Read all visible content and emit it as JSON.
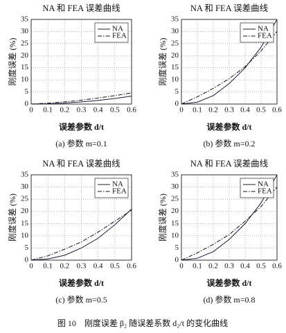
{
  "chart_data": [
    {
      "type": "line",
      "title": "NA 和 FEA 误差曲线",
      "xlabel": "误差参数 d/t",
      "ylabel": "刚度误差 (%)",
      "caption": "(a) 参数 m=0.1",
      "x": [
        0,
        0.1,
        0.2,
        0.3,
        0.4,
        0.5,
        0.6
      ],
      "series": [
        {
          "name": "NA",
          "color": "#1a1a3a",
          "dash": "none",
          "values": [
            0,
            0.1,
            0.4,
            0.9,
            1.5,
            2.3,
            3.3
          ]
        },
        {
          "name": "FEA",
          "color": "#111111",
          "dash": "6 2 1.5 2",
          "values": [
            0,
            0.4,
            0.9,
            1.6,
            2.5,
            3.5,
            4.6
          ]
        }
      ],
      "xlim": [
        0,
        0.6
      ],
      "ylim": [
        0,
        35
      ],
      "xticks": [
        0,
        0.1,
        0.2,
        0.3,
        0.4,
        0.5,
        0.6
      ],
      "yticks": [
        0,
        5,
        10,
        15,
        20,
        25,
        30,
        35
      ],
      "grid": true,
      "legend": "upper right"
    },
    {
      "type": "line",
      "title": "NA 和 FEA 误差曲线",
      "xlabel": "误差参数 d/t",
      "ylabel": "刚度误差 (%)",
      "caption": "(b) 参数 m=0.2",
      "x": [
        0,
        0.1,
        0.2,
        0.3,
        0.4,
        0.5,
        0.6
      ],
      "series": [
        {
          "name": "NA",
          "color": "#1a1a3a",
          "dash": "none",
          "values": [
            0,
            0.8,
            3.5,
            8.5,
            15,
            23.5,
            35
          ]
        },
        {
          "name": "FEA",
          "color": "#111111",
          "dash": "6 2 1.5 2",
          "values": [
            0,
            3,
            6.5,
            10.5,
            15.5,
            22,
            30
          ]
        }
      ],
      "xlim": [
        0,
        0.6
      ],
      "ylim": [
        0,
        35
      ],
      "xticks": [
        0,
        0.1,
        0.2,
        0.3,
        0.4,
        0.5,
        0.6
      ],
      "yticks": [
        0,
        5,
        10,
        15,
        20,
        25,
        30,
        35
      ],
      "grid": true,
      "legend": "upper right"
    },
    {
      "type": "line",
      "title": "NA 和 FEA 误差曲线",
      "xlabel": "误差参数 d/t",
      "ylabel": "刚度误差 (%)",
      "caption": "(c) 参数 m=0.5",
      "x": [
        0,
        0.1,
        0.2,
        0.3,
        0.4,
        0.5,
        0.6
      ],
      "series": [
        {
          "name": "NA",
          "color": "#1a1a3a",
          "dash": "none",
          "values": [
            0,
            0.5,
            2,
            5,
            9,
            14.5,
            21
          ]
        },
        {
          "name": "FEA",
          "color": "#111111",
          "dash": "6 2 1.5 2",
          "values": [
            0,
            1.8,
            4.5,
            7.5,
            11.5,
            16,
            20.5
          ]
        }
      ],
      "xlim": [
        0,
        0.6
      ],
      "ylim": [
        0,
        35
      ],
      "xticks": [
        0,
        0.1,
        0.2,
        0.3,
        0.4,
        0.5,
        0.6
      ],
      "yticks": [
        0,
        5,
        10,
        15,
        20,
        25,
        30,
        35
      ],
      "grid": true,
      "legend": "upper right"
    },
    {
      "type": "line",
      "title": "NA 和 FEA 误差曲线",
      "xlabel": "误差参数 d/t",
      "ylabel": "刚度误差 (%)",
      "caption": "(d) 参数 m=0.8",
      "x": [
        0,
        0.1,
        0.2,
        0.3,
        0.4,
        0.5,
        0.6
      ],
      "series": [
        {
          "name": "NA",
          "color": "#1a1a3a",
          "dash": "none",
          "values": [
            0,
            0.8,
            3.5,
            8.5,
            15,
            23.5,
            35
          ]
        },
        {
          "name": "FEA",
          "color": "#111111",
          "dash": "6 2 1.5 2",
          "values": [
            0,
            3,
            6.5,
            10.5,
            16,
            22,
            30
          ]
        }
      ],
      "xlim": [
        0,
        0.6
      ],
      "ylim": [
        0,
        35
      ],
      "xticks": [
        0,
        0.1,
        0.2,
        0.3,
        0.4,
        0.5,
        0.6
      ],
      "yticks": [
        0,
        5,
        10,
        15,
        20,
        25,
        30,
        35
      ],
      "grid": true,
      "legend": "upper right"
    }
  ],
  "figure_caption": "图 10　刚度误差 β₂ 随误差系数 d₂/t 的变化曲线"
}
